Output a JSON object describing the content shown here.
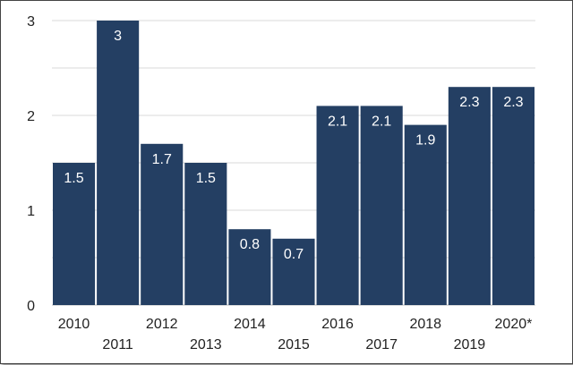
{
  "chart_data": {
    "type": "bar",
    "categories": [
      "2010",
      "2011",
      "2012",
      "2013",
      "2014",
      "2015",
      "2016",
      "2017",
      "2018",
      "2019",
      "2020*"
    ],
    "values": [
      1.5,
      3,
      1.7,
      1.5,
      0.8,
      0.7,
      2.1,
      2.1,
      1.9,
      2.3,
      2.3
    ],
    "value_labels": [
      "1.5",
      "3",
      "1.7",
      "1.5",
      "0.8",
      "0.7",
      "2.1",
      "2.1",
      "1.9",
      "2.3",
      "2.3"
    ],
    "y_ticks": [
      "0",
      "1",
      "2",
      "3"
    ],
    "ylim": [
      0,
      3
    ],
    "title": "",
    "xlabel": "",
    "ylabel": "",
    "grid": true,
    "bar_color": "#243f63",
    "grid_color": "#d9d9d9",
    "axis_color": "#bfbfbf"
  }
}
